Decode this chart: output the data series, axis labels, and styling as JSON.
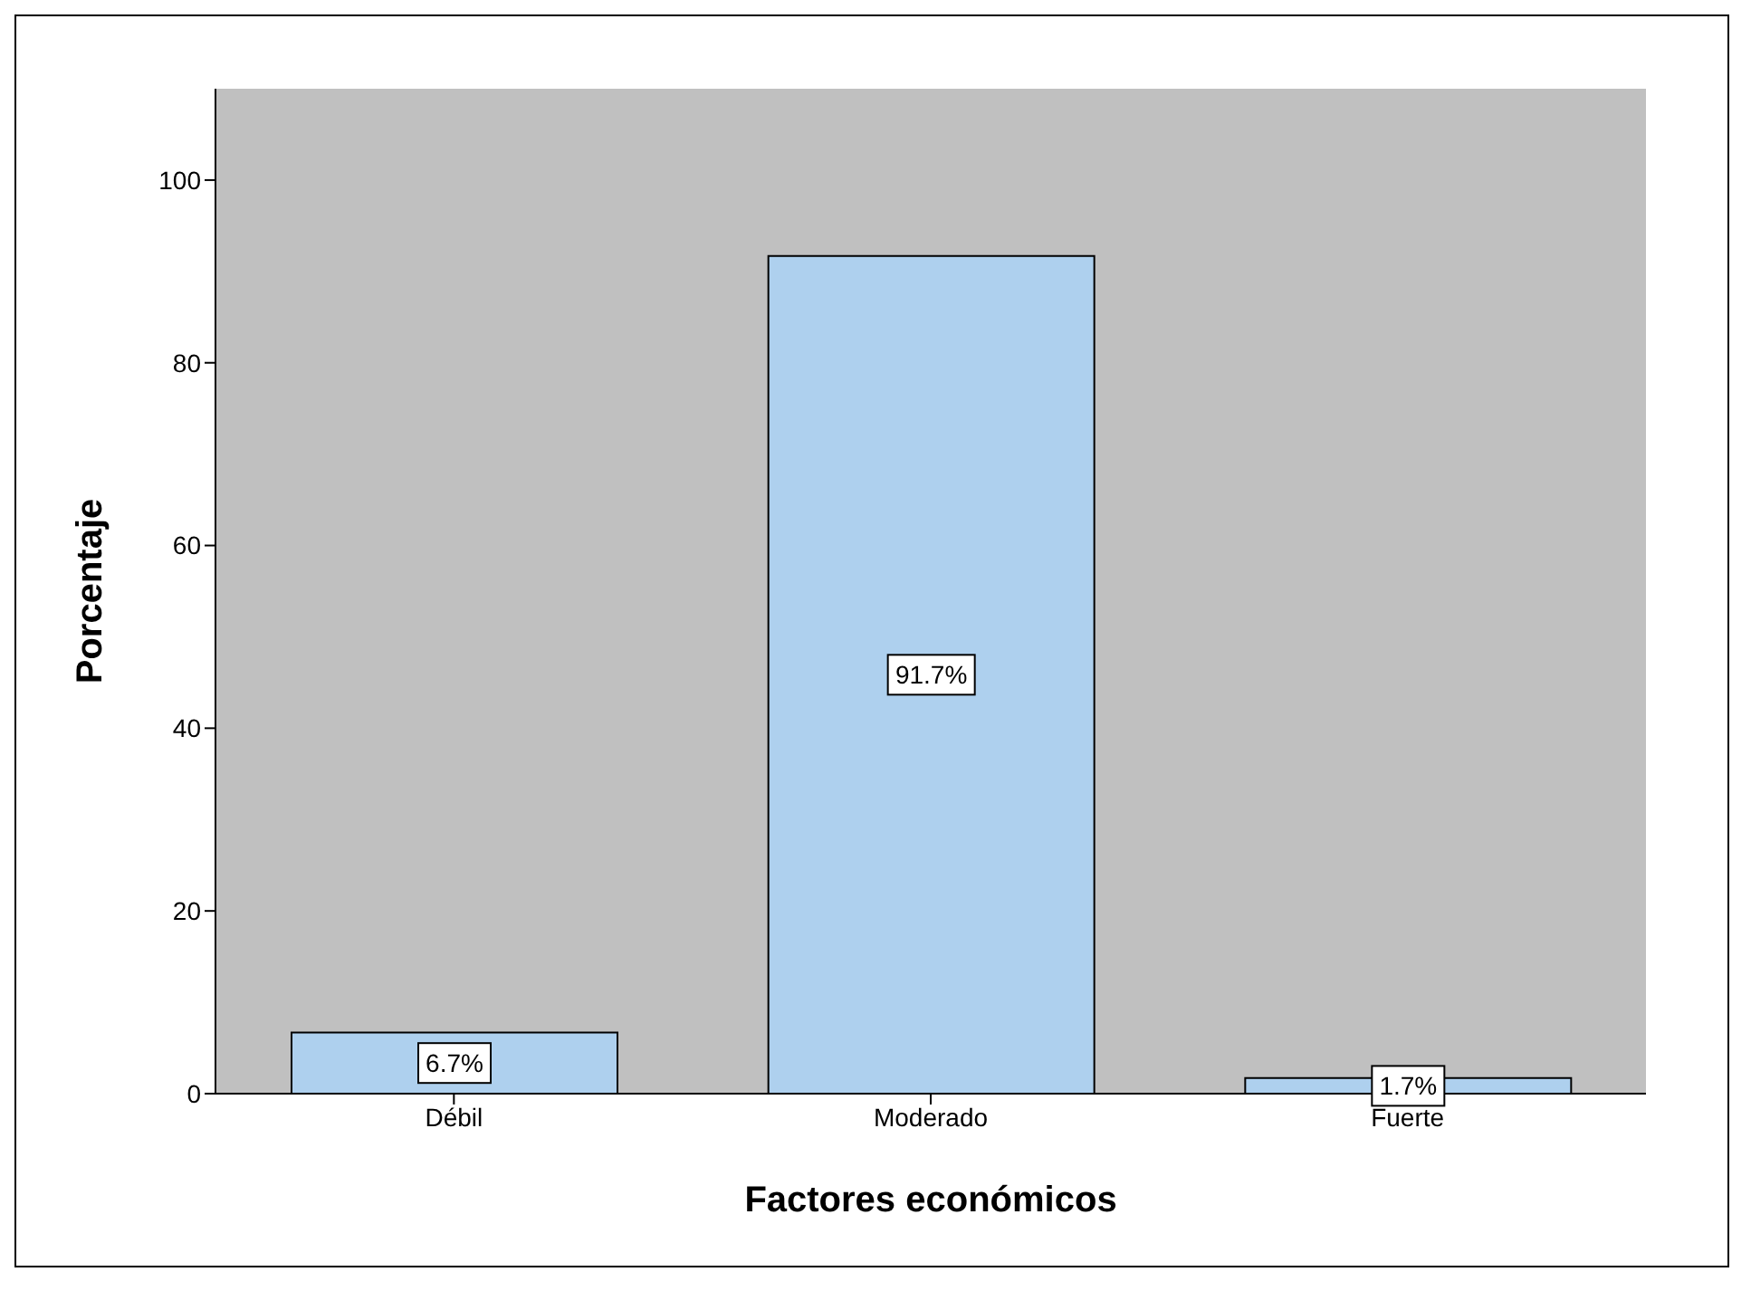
{
  "chart_data": {
    "type": "bar",
    "xlabel": "Factores económicos",
    "ylabel": "Porcentaje",
    "categories": [
      "Débil",
      "Moderado",
      "Fuerte"
    ],
    "values": [
      6.7,
      91.7,
      1.7
    ],
    "value_labels": [
      "6.7%",
      "91.7%",
      "1.7%"
    ],
    "color": "#aed0ee",
    "ylim": [
      0,
      110
    ],
    "yticks": [
      0,
      20,
      40,
      60,
      80,
      100
    ],
    "grid": false,
    "legend": false
  }
}
